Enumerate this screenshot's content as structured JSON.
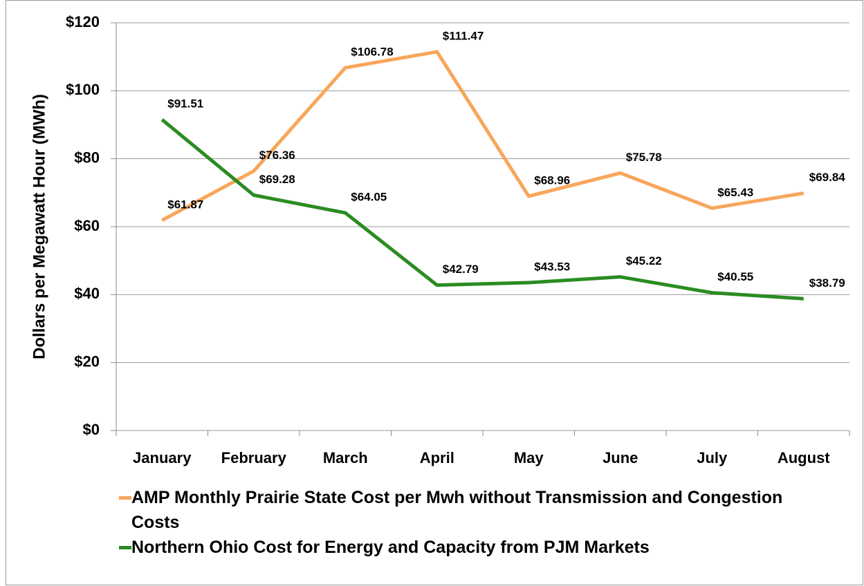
{
  "chart_data": {
    "type": "line",
    "y_axis_label": "Dollars per Megawatt Hour (MWh)",
    "categories": [
      "January",
      "February",
      "March",
      "April",
      "May",
      "June",
      "July",
      "August"
    ],
    "series": [
      {
        "name": "AMP Monthly Prairie State Cost per Mwh without Transmission and Congestion Costs",
        "color": "#f8a65a",
        "values": [
          61.87,
          76.36,
          106.78,
          111.47,
          68.96,
          75.78,
          65.43,
          69.84
        ],
        "value_labels": [
          "$61.87",
          "$76.36",
          "$106.78",
          "$111.47",
          "$68.96",
          "$75.78",
          "$65.43",
          "$69.84"
        ]
      },
      {
        "name": "Northern Ohio Cost for Energy and Capacity from PJM Markets",
        "color": "#2a8c22",
        "values": [
          91.51,
          69.28,
          64.05,
          42.79,
          43.53,
          45.22,
          40.55,
          38.79
        ],
        "value_labels": [
          "$91.51",
          "$69.28",
          "$64.05",
          "$42.79",
          "$43.53",
          "$45.22",
          "$40.55",
          "$38.79"
        ]
      }
    ],
    "ylim": [
      0,
      120
    ],
    "yticks": [
      {
        "value": 0,
        "label": "$0"
      },
      {
        "value": 20,
        "label": "$20"
      },
      {
        "value": 40,
        "label": "$40"
      },
      {
        "value": 60,
        "label": "$60"
      },
      {
        "value": 80,
        "label": "$80"
      },
      {
        "value": 100,
        "label": "$100"
      },
      {
        "value": 120,
        "label": "$120"
      }
    ],
    "grid": true,
    "legend": "bottom"
  }
}
